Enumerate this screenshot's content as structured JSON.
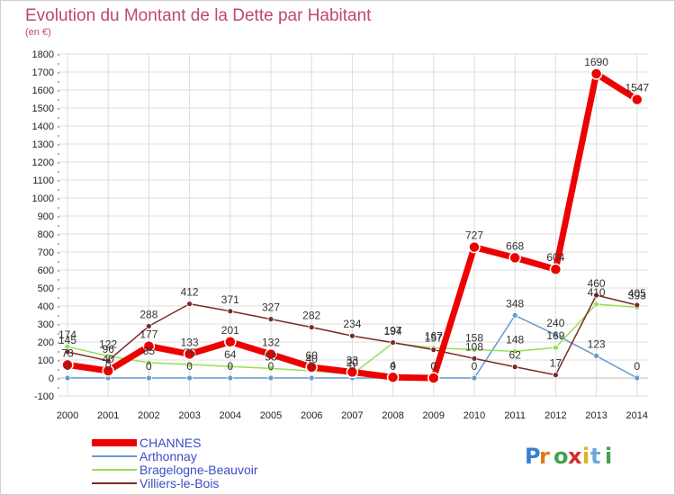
{
  "chart_data": {
    "type": "line",
    "title": "Evolution du Montant de la Dette par Habitant",
    "subtitle": "(en €)",
    "x": [
      "2000",
      "2001",
      "2002",
      "2003",
      "2004",
      "2005",
      "2006",
      "2007",
      "2008",
      "2009",
      "2010",
      "2011",
      "2012",
      "2013",
      "2014"
    ],
    "ylim": [
      -100,
      1800
    ],
    "yticks": [
      -100,
      0,
      100,
      200,
      300,
      400,
      500,
      600,
      700,
      800,
      900,
      1000,
      1100,
      1200,
      1300,
      1400,
      1500,
      1600,
      1700,
      1800
    ],
    "grid": true,
    "legend_position": "bottom-left",
    "series": [
      {
        "name": "CHANNES",
        "color": "#ee0000",
        "values": [
          73,
          40,
          177,
          133,
          201,
          132,
          60,
          33,
          4,
          0,
          727,
          668,
          604,
          1690,
          1547
        ],
        "labels": [
          "73",
          "40",
          "177",
          "133",
          "201",
          "132",
          "60",
          "33",
          "4",
          "0",
          "727",
          "668",
          "604",
          "1690",
          "1547"
        ]
      },
      {
        "name": "Arthonnay",
        "color": "#6699cc",
        "values": [
          0,
          0,
          0,
          0,
          0,
          0,
          0,
          0,
          0,
          0,
          0,
          348,
          240,
          123,
          0
        ],
        "labels": [
          "0",
          "0",
          "0",
          "0",
          "0",
          "0",
          "0",
          "0",
          "0",
          "0",
          "0",
          "348",
          "240",
          "123",
          "0"
        ]
      },
      {
        "name": "Bragelogne-Beauvoir",
        "color": "#99dd55",
        "values": [
          174,
          122,
          85,
          75,
          64,
          53,
          40,
          20,
          194,
          167,
          158,
          148,
          169,
          410,
          393
        ],
        "labels": [
          "174",
          "122",
          "85",
          "75",
          "64",
          "53",
          "40",
          "20",
          "194",
          "167",
          "158",
          "148",
          "169",
          "410",
          "393"
        ]
      },
      {
        "name": "Villiers-le-Bois",
        "color": "#7a2a2a",
        "values": [
          145,
          96,
          288,
          412,
          371,
          327,
          282,
          234,
          197,
          157,
          108,
          62,
          17,
          460,
          405
        ],
        "labels": [
          "145",
          "96",
          "288",
          "412",
          "371",
          "327",
          "282",
          "234",
          "197",
          "157",
          "108",
          "62",
          "17",
          "460",
          "405"
        ]
      }
    ]
  },
  "watermark": "Proxiti"
}
